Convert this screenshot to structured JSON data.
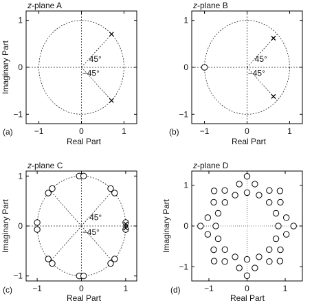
{
  "panels": [
    {
      "id": "A",
      "title": "z-plane A",
      "title_italic": "z",
      "title_rest": "-plane A",
      "caption": "(a)",
      "xlabel": "Real Part",
      "ylabel": "Imaginary Part",
      "ylabel_visible": true,
      "xticks": [
        "−1",
        "0",
        "1"
      ],
      "yticks": [
        "1",
        "0",
        "−1"
      ],
      "angle_labels": [
        "45°",
        "−45°"
      ],
      "angle_rays_deg": [
        45,
        -45
      ],
      "unit_circle": true,
      "center_cross": true,
      "poles": [
        [
          0.707,
          0.707
        ],
        [
          0.707,
          -0.707
        ]
      ],
      "zeros": []
    },
    {
      "id": "B",
      "title": "z-plane B",
      "title_italic": "z",
      "title_rest": "-plane B",
      "caption": "(b)",
      "xlabel": "Real Part",
      "ylabel": "Imaginary Part",
      "ylabel_visible": false,
      "xticks": [
        "−1",
        "0",
        "1"
      ],
      "yticks": [
        "1",
        "0",
        "−1"
      ],
      "angle_labels": [
        "45°",
        "−45°"
      ],
      "angle_rays_deg": [
        45,
        -45
      ],
      "unit_circle": true,
      "center_cross": true,
      "poles": [
        [
          0.62,
          0.62
        ],
        [
          0.62,
          -0.62
        ]
      ],
      "zeros": [
        [
          -1.0,
          0.0
        ]
      ]
    },
    {
      "id": "C",
      "title": "z-plane C",
      "title_italic": "z",
      "title_rest": "-plane C",
      "caption": "(c)",
      "xlabel": "Real Part",
      "ylabel": "Imaginary Part",
      "ylabel_visible": true,
      "xticks": [
        "−1",
        "0",
        "1"
      ],
      "yticks": [
        "1",
        "0",
        "−1"
      ],
      "angle_labels": [
        "45°",
        "−45°"
      ],
      "angle_rays_deg": [
        45,
        -45,
        135,
        -135
      ],
      "unit_circle": true,
      "center_cross": true,
      "poles": [
        [
          1.0,
          0.0
        ],
        [
          1.0,
          0.0
        ]
      ],
      "zeros": [
        [
          1.0,
          0.07
        ],
        [
          1.0,
          -0.07
        ],
        [
          -1.0,
          0.07
        ],
        [
          -1.0,
          -0.07
        ],
        [
          -0.05,
          1.0
        ],
        [
          0.05,
          1.0
        ],
        [
          -0.05,
          -1.0
        ],
        [
          0.05,
          -1.0
        ],
        [
          0.66,
          0.75
        ],
        [
          0.75,
          0.66
        ],
        [
          -0.66,
          0.75
        ],
        [
          -0.75,
          0.66
        ],
        [
          0.66,
          -0.75
        ],
        [
          0.75,
          -0.66
        ],
        [
          -0.66,
          -0.75
        ],
        [
          -0.75,
          -0.66
        ]
      ]
    },
    {
      "id": "D",
      "title": "z-plane D",
      "title_italic": "z",
      "title_rest": "-plane D",
      "caption": "(d)",
      "xlabel": "Real Part",
      "ylabel": "Imaginary Part",
      "ylabel_visible": true,
      "xticks": [
        "−1",
        "0",
        "1"
      ],
      "yticks": [
        "1",
        "0",
        "−1"
      ],
      "angle_labels": [],
      "angle_rays_deg": [],
      "unit_circle": false,
      "center_cross": false,
      "dotted_center_cross": true,
      "poles": [],
      "zeros_rings": [
        {
          "radius": 0.82,
          "count": 16,
          "offset_deg": 0
        },
        {
          "radius": 1.05,
          "count": 16,
          "offset_deg": 11.25
        },
        {
          "radius": 1.22,
          "count": 8,
          "offset_deg": 0
        }
      ]
    }
  ]
}
